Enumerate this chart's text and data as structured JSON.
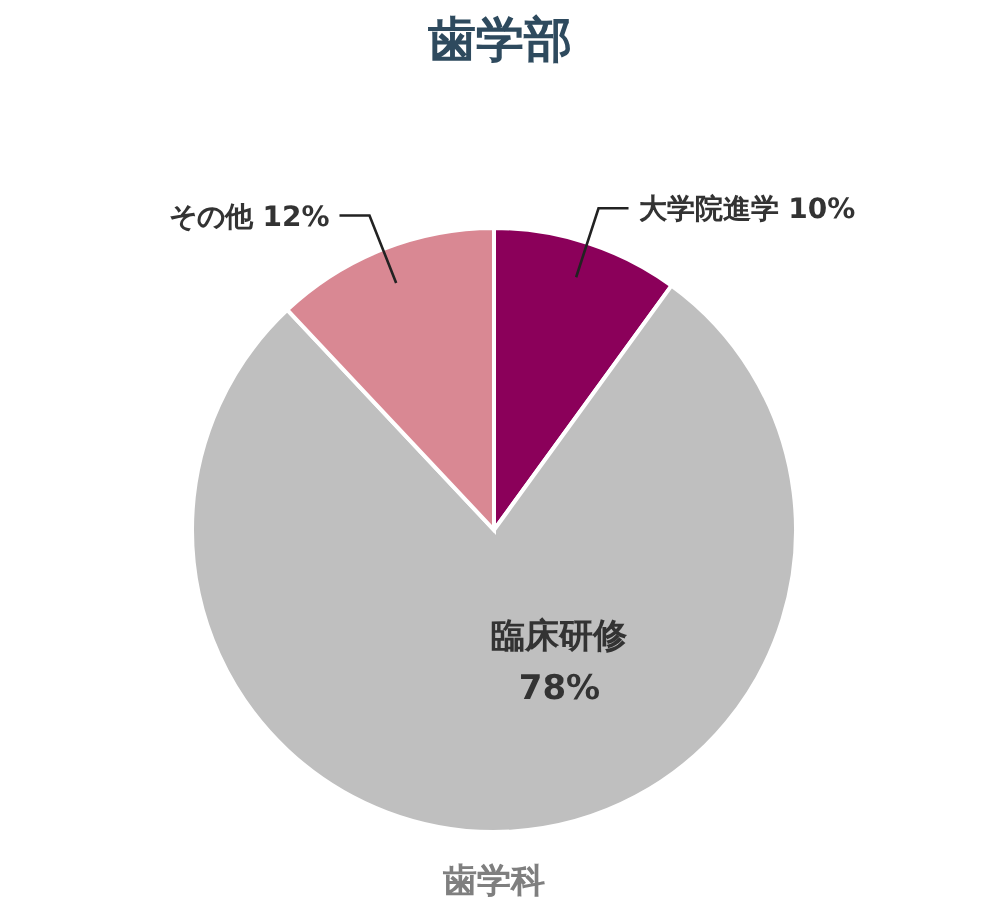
{
  "chart_data": {
    "type": "pie",
    "title": "歯学部",
    "categories": [
      "大学院進学",
      "臨床研修",
      "その他"
    ],
    "values": [
      10,
      78,
      12
    ],
    "colors": [
      "#8b005a",
      "#bfbfbf",
      "#d98893"
    ],
    "value_labels": [
      "10%",
      "78%",
      "12%"
    ],
    "annotations": [
      "歯学科"
    ]
  }
}
